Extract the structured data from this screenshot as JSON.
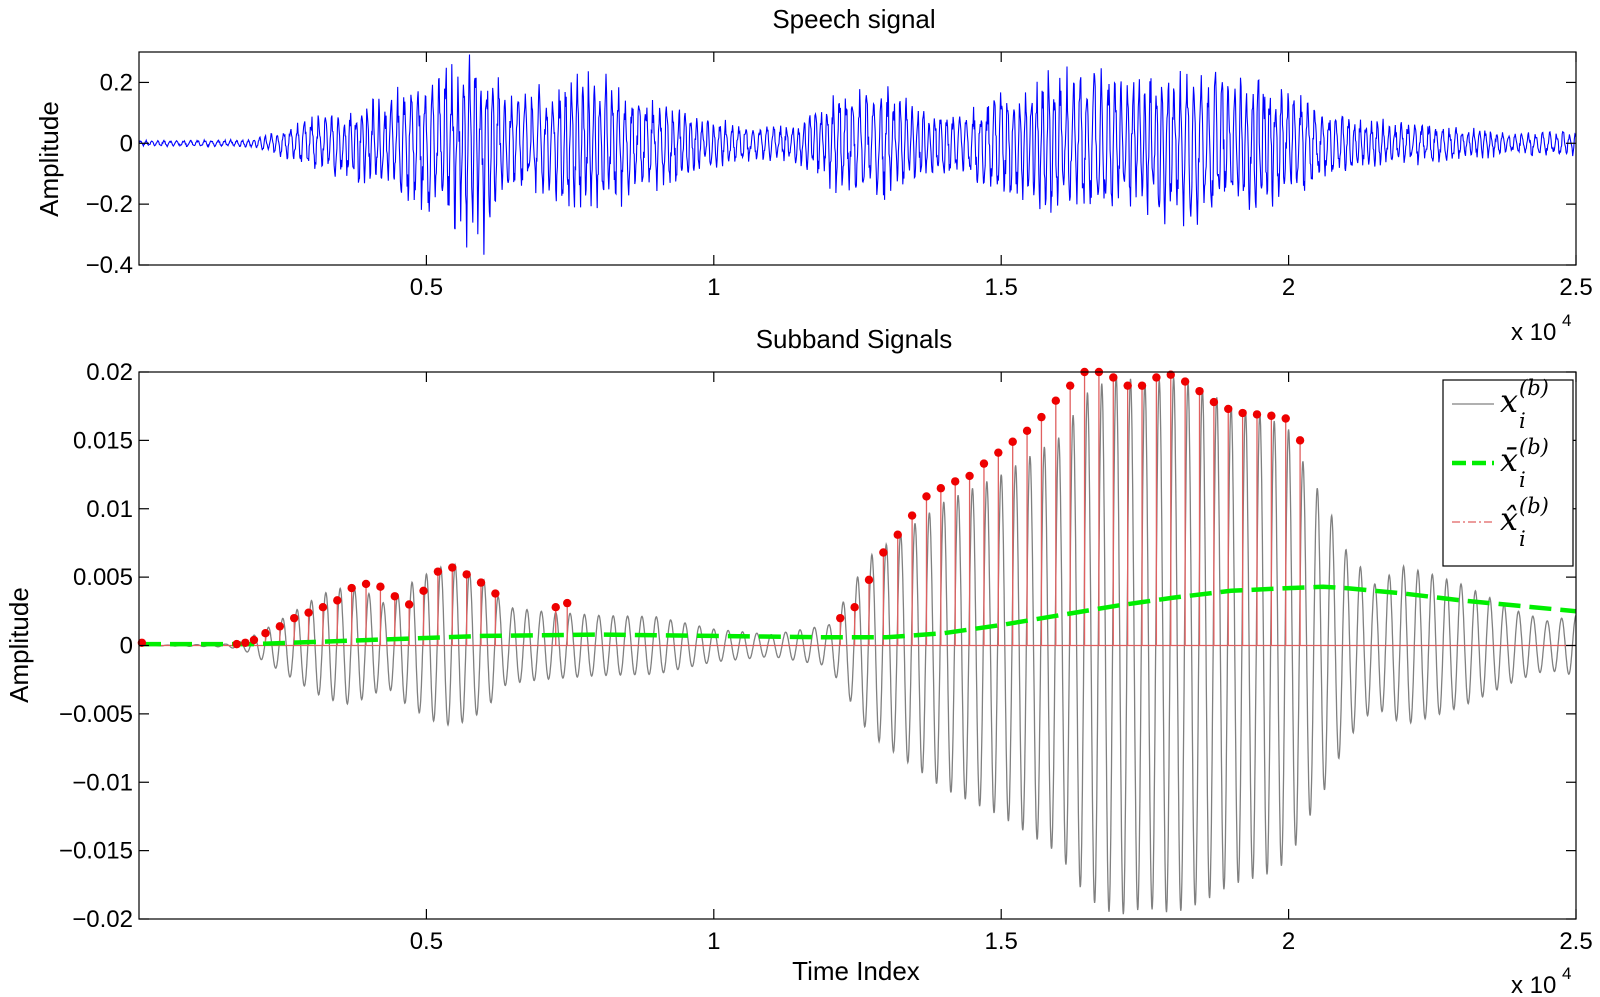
{
  "chart_data": [
    {
      "type": "line",
      "title": "Speech signal",
      "xlabel": "",
      "ylabel": "Amplitude",
      "xlim": [
        0,
        25000
      ],
      "ylim": [
        -0.4,
        0.3
      ],
      "x_multiplier": "x 10",
      "x_multiplier_exp": "4",
      "xticks": [
        5000,
        10000,
        15000,
        20000,
        25000
      ],
      "xtick_labels": [
        "0.5",
        "1",
        "1.5",
        "2",
        "2.5"
      ],
      "yticks": [
        0.2,
        0,
        -0.2,
        -0.4
      ],
      "ytick_labels": [
        "0.2",
        "0",
        "−0.2",
        "−0.4"
      ],
      "series": [
        {
          "color": "#0000ff",
          "envelope_x": [
            0,
            2000,
            2500,
            3300,
            3800,
            4500,
            5000,
            5600,
            6000,
            6300,
            6900,
            7500,
            7900,
            8500,
            9300,
            10000,
            10500,
            11000,
            11500,
            12000,
            12700,
            13000,
            13500,
            14000,
            14500,
            15000,
            15500,
            16000,
            16700,
            17500,
            18000,
            18500,
            19000,
            19500,
            20000,
            20500,
            21000,
            22000,
            23000,
            24000,
            25000
          ],
          "envelope_amplitude": [
            0.01,
            0.015,
            0.05,
            0.12,
            0.15,
            0.2,
            0.24,
            0.34,
            0.38,
            0.2,
            0.19,
            0.24,
            0.25,
            0.2,
            0.14,
            0.09,
            0.07,
            0.06,
            0.08,
            0.17,
            0.19,
            0.21,
            0.14,
            0.12,
            0.13,
            0.2,
            0.24,
            0.26,
            0.26,
            0.25,
            0.28,
            0.28,
            0.24,
            0.25,
            0.21,
            0.15,
            0.1,
            0.08,
            0.06,
            0.04,
            0.05
          ]
        }
      ]
    },
    {
      "type": "line",
      "title": "Subband Signals",
      "xlabel": "Time Index",
      "ylabel": "Amplitude",
      "xlim": [
        0,
        25000
      ],
      "ylim": [
        -0.02,
        0.02
      ],
      "x_multiplier": "x 10",
      "x_multiplier_exp": "4",
      "xticks": [
        5000,
        10000,
        15000,
        20000,
        25000
      ],
      "xtick_labels": [
        "0.5",
        "1",
        "1.5",
        "2",
        "2.5"
      ],
      "yticks": [
        0.02,
        0.015,
        0.01,
        0.005,
        0,
        -0.005,
        -0.01,
        -0.015,
        -0.02
      ],
      "ytick_labels": [
        "0.02",
        "0.015",
        "0.01",
        "0.005",
        "0",
        "−0.005",
        "−0.01",
        "−0.015",
        "−0.02"
      ],
      "legend": {
        "placement": "top-right",
        "entries": [
          {
            "base": "x",
            "accent": "",
            "sub": "i",
            "sup": "(b)",
            "color": "#808080",
            "style": "solid"
          },
          {
            "base": "x",
            "accent": "̄",
            "sub": "i",
            "sup": "(b)",
            "color": "#00ee00",
            "style": "dashed"
          },
          {
            "base": "x",
            "accent": "̂",
            "sub": "i",
            "sup": "(b)",
            "color": "#e06060",
            "style": "dash-dot"
          }
        ]
      },
      "series": [
        {
          "role": "x_i^(b)",
          "color": "#808080",
          "envelope_x": [
            0,
            1500,
            1800,
            2200,
            2700,
            3200,
            3600,
            4000,
            4300,
            4700,
            5200,
            5500,
            6000,
            6400,
            7000,
            8000,
            9000,
            10000,
            11000,
            12000,
            12300,
            12700,
            13200,
            14000,
            15000,
            16000,
            16500,
            17000,
            17500,
            18000,
            18500,
            19000,
            19600,
            20000,
            20300,
            20700,
            21000,
            21500,
            22000,
            22500,
            23000,
            23500,
            24000,
            24500,
            25000
          ],
          "envelope_amplitude": [
            0,
            0.0001,
            0.0003,
            0.0012,
            0.0025,
            0.0038,
            0.0043,
            0.0038,
            0.003,
            0.0045,
            0.0057,
            0.0059,
            0.0048,
            0.0028,
            0.0025,
            0.0022,
            0.0021,
            0.0012,
            0.0008,
            0.0015,
            0.0035,
            0.0065,
            0.008,
            0.0105,
            0.0125,
            0.0152,
            0.0185,
            0.0198,
            0.0192,
            0.0196,
            0.0188,
            0.0175,
            0.0168,
            0.0158,
            0.013,
            0.01,
            0.007,
            0.0045,
            0.0058,
            0.0052,
            0.0045,
            0.0035,
            0.0025,
            0.0018,
            0.0022
          ]
        },
        {
          "role": "xbar_i^(b)",
          "color": "#00ee00",
          "x": [
            0,
            2000,
            4000,
            6000,
            8000,
            10000,
            12000,
            13000,
            14000,
            15000,
            16000,
            17000,
            18000,
            19000,
            20000,
            20600,
            21000,
            22000,
            23000,
            24000,
            25000
          ],
          "values": [
            0.0001,
            0.0001,
            0.0004,
            0.0007,
            0.0008,
            0.0007,
            0.0006,
            0.0006,
            0.0009,
            0.0015,
            0.0022,
            0.0029,
            0.0035,
            0.004,
            0.0042,
            0.0043,
            0.0042,
            0.0038,
            0.0033,
            0.0029,
            0.0025
          ]
        },
        {
          "role": "xhat_i^(b)",
          "color": "#e06060",
          "peak_markers": {
            "marker_color": "#ee0000",
            "x": [
              50,
              1700,
              1850,
              2000,
              2200,
              2450,
              2700,
              2950,
              3200,
              3450,
              3700,
              3950,
              4200,
              4450,
              4700,
              4950,
              5200,
              5450,
              5700,
              5950,
              6200,
              7250,
              7450,
              12200,
              12450,
              12700,
              12950,
              13200,
              13450,
              13700,
              13950,
              14200,
              14450,
              14700,
              14950,
              15200,
              15450,
              15700,
              15950,
              16200,
              16450,
              16700,
              16950,
              17200,
              17450,
              17700,
              17950,
              18200,
              18450,
              18700,
              18950,
              19200,
              19450,
              19700,
              19950,
              20200
            ],
            "values": [
              0.0002,
              0.0001,
              0.0002,
              0.0004,
              0.0009,
              0.0014,
              0.002,
              0.0024,
              0.0028,
              0.0033,
              0.0042,
              0.0045,
              0.0043,
              0.0036,
              0.003,
              0.004,
              0.0054,
              0.0057,
              0.0052,
              0.0046,
              0.0038,
              0.0028,
              0.0031,
              0.002,
              0.0028,
              0.0048,
              0.0068,
              0.0081,
              0.0095,
              0.0109,
              0.0115,
              0.012,
              0.0124,
              0.0133,
              0.0141,
              0.0149,
              0.0157,
              0.0167,
              0.0179,
              0.019,
              0.02,
              0.02,
              0.0196,
              0.019,
              0.019,
              0.0196,
              0.0198,
              0.0193,
              0.0186,
              0.0178,
              0.0173,
              0.017,
              0.0169,
              0.0168,
              0.0166,
              0.015
            ]
          }
        }
      ]
    }
  ]
}
